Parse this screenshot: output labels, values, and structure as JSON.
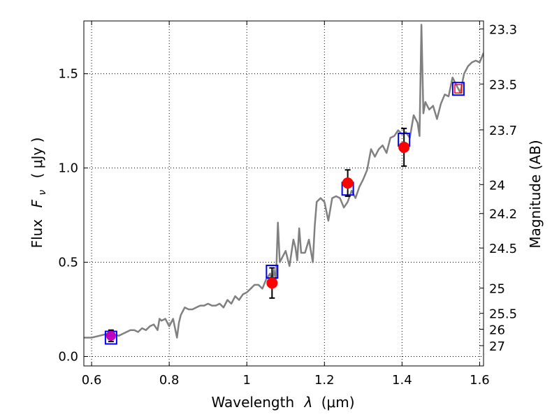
{
  "chart_data": {
    "type": "scatter",
    "xlabel": "Wavelength",
    "xlabel_symbol": "λ",
    "xlabel_unit": "(μm)",
    "ylabel": "Flux",
    "ylabel_symbol": "F",
    "ylabel_subscript": "ν",
    "ylabel_unit": "( μJy )",
    "y2label": "Magnitude (AB)",
    "xlim": [
      0.58,
      1.61
    ],
    "ylim": [
      -0.05,
      1.78
    ],
    "grid": true,
    "x_ticks": [
      {
        "value": 0.6,
        "label": "0.6"
      },
      {
        "value": 0.8,
        "label": "0.8"
      },
      {
        "value": 1.0,
        "label": "1"
      },
      {
        "value": 1.2,
        "label": "1.2"
      },
      {
        "value": 1.4,
        "label": "1.4"
      },
      {
        "value": 1.6,
        "label": "1.6"
      }
    ],
    "y_ticks": [
      {
        "value": 0.0,
        "label": "0.0"
      },
      {
        "value": 0.5,
        "label": "0.5"
      },
      {
        "value": 1.0,
        "label": "1.0"
      },
      {
        "value": 1.5,
        "label": "1.5"
      }
    ],
    "y2_ticks": [
      {
        "value": 23.3,
        "label": "23.3"
      },
      {
        "value": 23.5,
        "label": "23.5"
      },
      {
        "value": 23.7,
        "label": "23.7"
      },
      {
        "value": 24.0,
        "label": "24"
      },
      {
        "value": 24.2,
        "label": "24.2"
      },
      {
        "value": 24.5,
        "label": "24.5"
      },
      {
        "value": 25.0,
        "label": "25"
      },
      {
        "value": 25.5,
        "label": "25.5"
      },
      {
        "value": 26.0,
        "label": "26"
      },
      {
        "value": 27.0,
        "label": "27"
      }
    ],
    "spectrum_color": "#808080",
    "spectrum": {
      "x": [
        0.58,
        0.6,
        0.62,
        0.64,
        0.65,
        0.67,
        0.69,
        0.7,
        0.71,
        0.72,
        0.73,
        0.74,
        0.75,
        0.76,
        0.77,
        0.775,
        0.78,
        0.79,
        0.8,
        0.81,
        0.82,
        0.825,
        0.83,
        0.84,
        0.85,
        0.86,
        0.87,
        0.88,
        0.89,
        0.9,
        0.91,
        0.92,
        0.93,
        0.94,
        0.95,
        0.96,
        0.97,
        0.98,
        0.99,
        1.0,
        1.01,
        1.02,
        1.03,
        1.04,
        1.05,
        1.06,
        1.065,
        1.07,
        1.075,
        1.08,
        1.085,
        1.09,
        1.1,
        1.11,
        1.12,
        1.125,
        1.13,
        1.135,
        1.14,
        1.15,
        1.16,
        1.17,
        1.175,
        1.18,
        1.19,
        1.2,
        1.21,
        1.22,
        1.23,
        1.24,
        1.25,
        1.26,
        1.27,
        1.28,
        1.29,
        1.3,
        1.31,
        1.32,
        1.33,
        1.34,
        1.35,
        1.36,
        1.37,
        1.38,
        1.39,
        1.4,
        1.41,
        1.42,
        1.43,
        1.44,
        1.445,
        1.45,
        1.455,
        1.46,
        1.47,
        1.48,
        1.49,
        1.5,
        1.51,
        1.52,
        1.53,
        1.54,
        1.55,
        1.56,
        1.57,
        1.58,
        1.59,
        1.6,
        1.61
      ],
      "y": [
        0.1,
        0.1,
        0.11,
        0.12,
        0.12,
        0.11,
        0.13,
        0.14,
        0.14,
        0.13,
        0.15,
        0.14,
        0.16,
        0.17,
        0.14,
        0.2,
        0.19,
        0.2,
        0.16,
        0.2,
        0.1,
        0.18,
        0.22,
        0.26,
        0.25,
        0.25,
        0.26,
        0.27,
        0.27,
        0.28,
        0.27,
        0.27,
        0.28,
        0.26,
        0.3,
        0.28,
        0.32,
        0.3,
        0.33,
        0.34,
        0.36,
        0.38,
        0.38,
        0.36,
        0.41,
        0.44,
        0.38,
        0.46,
        0.4,
        0.71,
        0.5,
        0.52,
        0.56,
        0.48,
        0.62,
        0.58,
        0.51,
        0.68,
        0.55,
        0.55,
        0.62,
        0.5,
        0.69,
        0.82,
        0.84,
        0.82,
        0.72,
        0.84,
        0.85,
        0.84,
        0.79,
        0.82,
        0.88,
        0.84,
        0.9,
        0.94,
        0.99,
        1.1,
        1.06,
        1.1,
        1.12,
        1.08,
        1.16,
        1.17,
        1.2,
        1.18,
        1.19,
        1.16,
        1.28,
        1.24,
        1.17,
        1.76,
        1.29,
        1.35,
        1.31,
        1.33,
        1.26,
        1.34,
        1.39,
        1.38,
        1.48,
        1.44,
        1.4,
        1.5,
        1.54,
        1.56,
        1.57,
        1.56,
        1.61
      ]
    },
    "observed_points": {
      "color": "#ff0000",
      "x": [
        0.65,
        1.065,
        1.26,
        1.405
      ],
      "y": [
        0.11,
        0.39,
        0.92,
        1.11
      ],
      "yerr": [
        0.03,
        0.08,
        0.07,
        0.1
      ]
    },
    "model_points": {
      "color": "#0000ff",
      "x": [
        0.65,
        1.065,
        1.26,
        1.405,
        1.545
      ],
      "y": [
        0.1,
        0.45,
        0.89,
        1.15,
        1.42
      ]
    },
    "highlight_points": {
      "magenta": {
        "color": "#bf00bf",
        "x": 0.65,
        "y": 0.11
      },
      "red_square": {
        "color": "#ff0000",
        "x": 1.545,
        "y": 1.42
      }
    }
  }
}
